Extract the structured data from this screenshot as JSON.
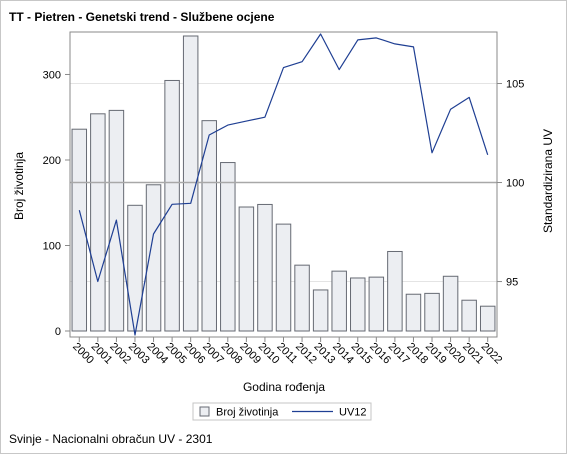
{
  "title": "TT - Pietren - Genetski trend - Službene ocjene",
  "footnote": "Svinje - Nacionalni obračun UV - 2301",
  "colors": {
    "bar_fill": "#eceef2",
    "bar_stroke": "#666a73",
    "line": "#1f3f93",
    "axis": "#8a8a8a",
    "reference_line": "#a8a8a8",
    "grid": "#e4e4e4"
  },
  "chart_data": {
    "type": "bar",
    "xlabel": "Godina rođenja",
    "ylabel": "Broj životinja",
    "y2label": "Standardizirana UV",
    "categories": [
      "2000",
      "2001",
      "2002",
      "2003",
      "2004",
      "2005",
      "2006",
      "2007",
      "2008",
      "2009",
      "2010",
      "2011",
      "2012",
      "2013",
      "2014",
      "2015",
      "2016",
      "2017",
      "2018",
      "2019",
      "2020",
      "2021",
      "2022"
    ],
    "ylim": [
      0,
      345
    ],
    "y_ticks": [
      0,
      100,
      200,
      300
    ],
    "y2lim": [
      92.2,
      107.6
    ],
    "y2_ticks": [
      95,
      100,
      105
    ],
    "reference_y2": 100,
    "grid": true,
    "legend_position": "bottom",
    "series": [
      {
        "name": "Broj životinja",
        "type": "bar",
        "axis": "left",
        "values": [
          236,
          254,
          258,
          147,
          171,
          293,
          345,
          246,
          197,
          145,
          148,
          125,
          77,
          48,
          70,
          62,
          63,
          93,
          43,
          44,
          64,
          36,
          29
        ]
      },
      {
        "name": "UV12",
        "type": "line",
        "axis": "right",
        "values": [
          98.6,
          95.0,
          98.1,
          92.3,
          97.4,
          98.9,
          98.95,
          102.4,
          102.9,
          103.1,
          103.3,
          105.8,
          106.1,
          107.5,
          105.7,
          107.2,
          107.3,
          107.0,
          106.85,
          101.5,
          103.7,
          104.3,
          101.4
        ]
      }
    ]
  }
}
